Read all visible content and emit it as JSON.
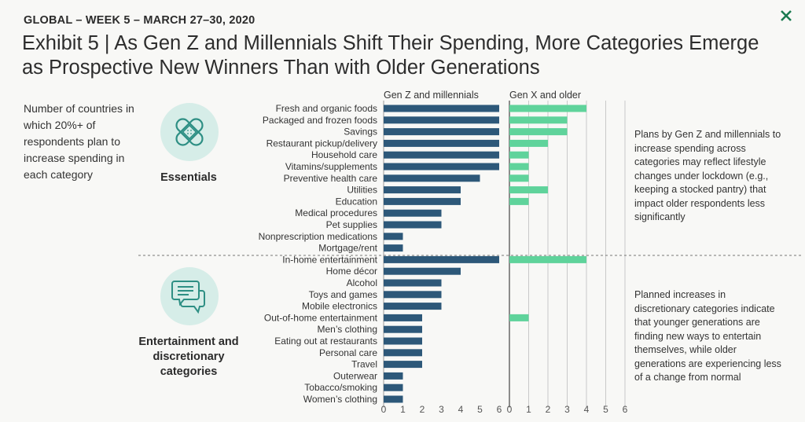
{
  "header": {
    "kicker": "GLOBAL – WEEK 5 – MARCH 27–30, 2020",
    "title": "Exhibit 5 | As Gen Z and Millennials Shift Their Spending, More Categories Emerge as Prospective New Winners Than with Older Generations"
  },
  "description": "Number of countries in which 20%+ of respondents plan to increase spending in each category",
  "groups": {
    "essentials": {
      "label": "Essentials",
      "icon": "bandage-icon",
      "note": "Plans by Gen Z and millennials to increase spending across categories may reflect lifestyle changes under lockdown (e.g., keeping a stocked pantry) that impact older respondents less significantly"
    },
    "entertainment": {
      "label": "Entertainment and discretionary categories",
      "icon": "chat-bubbles-icon",
      "note": "Planned increases in discretionary categories indicate that younger generations are finding new ways to entertain themselves, while older generations are experiencing less of a change from normal"
    }
  },
  "colors": {
    "genz": "#2d5879",
    "genx": "#5fd39b",
    "icon_bg": "#d6ede8",
    "icon_stroke": "#2e8f84"
  },
  "chart_data": {
    "type": "bar",
    "orientation": "horizontal",
    "categories": [
      "Fresh and organic foods",
      "Packaged and frozen foods",
      "Savings",
      "Restaurant pickup/delivery",
      "Household care",
      "Vitamins/supplements",
      "Preventive health care",
      "Utilities",
      "Education",
      "Medical procedures",
      "Pet supplies",
      "Nonprescription medications",
      "Mortgage/rent",
      "In-home entertainment",
      "Home décor",
      "Alcohol",
      "Toys and games",
      "Mobile electronics",
      "Out-of-home entertainment",
      "Men’s clothing",
      "Eating out at restaurants",
      "Personal care",
      "Travel",
      "Outerwear",
      "Tobacco/smoking",
      "Women’s clothing"
    ],
    "series": [
      {
        "name": "Gen Z and millennials",
        "values": [
          6,
          6,
          6,
          6,
          6,
          6,
          5,
          4,
          4,
          3,
          3,
          1,
          1,
          6,
          4,
          3,
          3,
          3,
          2,
          2,
          2,
          2,
          2,
          1,
          1,
          1
        ]
      },
      {
        "name": "Gen X and older",
        "values": [
          4,
          3,
          3,
          2,
          1,
          1,
          1,
          2,
          1,
          0,
          0,
          0,
          0,
          4,
          0,
          0,
          0,
          0,
          1,
          0,
          0,
          0,
          0,
          0,
          0,
          0
        ]
      }
    ],
    "x_ticks": [
      0,
      1,
      2,
      3,
      4,
      5,
      6
    ],
    "xlim": [
      0,
      6
    ],
    "group_split_after": "Mortgage/rent"
  }
}
